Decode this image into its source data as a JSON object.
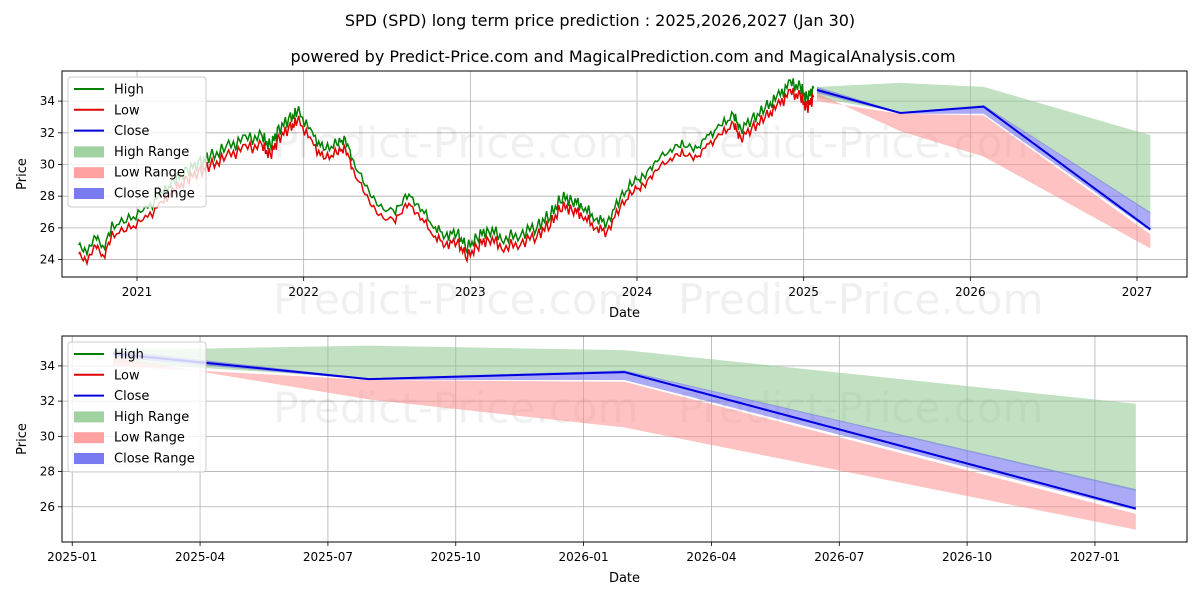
{
  "title": "SPD (SPD) long term price prediction : 2025,2026,2027 (Jan 30)",
  "subtitle": "powered by Predict-Price.com and MagicalPrediction.com and MagicalAnalysis.com",
  "watermark": "Predict-Price.com",
  "colors": {
    "high": "#008000",
    "low": "#e00000",
    "close": "#0000dd",
    "high_range": "#8fc98f",
    "low_range": "#ff9090",
    "close_range": "#6464ee",
    "grid": "#b0b0b0"
  },
  "chart_data": [
    {
      "type": "line",
      "name": "history-and-forecast",
      "xlabel": "Date",
      "ylabel": "Price",
      "x_ticks": [
        "2021",
        "2022",
        "2023",
        "2024",
        "2025",
        "2026",
        "2027"
      ],
      "y_ticks": [
        24,
        26,
        28,
        30,
        32,
        34
      ],
      "xlim": [
        2020.55,
        2027.3
      ],
      "ylim": [
        22.9,
        35.9
      ],
      "legend": [
        "High",
        "Low",
        "Close",
        "High Range",
        "Low Range",
        "Close Range"
      ],
      "legend_position": "top-left",
      "grid": true,
      "history": [
        [
          2020.65,
          24.6
        ],
        [
          2020.7,
          24.1
        ],
        [
          2020.75,
          25.2
        ],
        [
          2020.8,
          24.4
        ],
        [
          2020.85,
          25.8
        ],
        [
          2020.95,
          26.2
        ],
        [
          2021.05,
          26.8
        ],
        [
          2021.15,
          27.8
        ],
        [
          2021.22,
          28.6
        ],
        [
          2021.3,
          29.3
        ],
        [
          2021.38,
          29.8
        ],
        [
          2021.45,
          30.2
        ],
        [
          2021.55,
          30.8
        ],
        [
          2021.65,
          31.3
        ],
        [
          2021.75,
          31.4
        ],
        [
          2021.8,
          30.8
        ],
        [
          2021.85,
          31.9
        ],
        [
          2021.92,
          32.6
        ],
        [
          2021.97,
          33.0
        ],
        [
          2022.05,
          31.6
        ],
        [
          2022.12,
          30.6
        ],
        [
          2022.2,
          31.0
        ],
        [
          2022.25,
          31.3
        ],
        [
          2022.3,
          29.8
        ],
        [
          2022.38,
          28.2
        ],
        [
          2022.45,
          27.0
        ],
        [
          2022.55,
          26.7
        ],
        [
          2022.62,
          27.8
        ],
        [
          2022.7,
          27.0
        ],
        [
          2022.78,
          25.8
        ],
        [
          2022.85,
          25.2
        ],
        [
          2022.92,
          25.4
        ],
        [
          2022.98,
          24.4
        ],
        [
          2023.05,
          25.2
        ],
        [
          2023.12,
          25.6
        ],
        [
          2023.2,
          25.0
        ],
        [
          2023.3,
          25.3
        ],
        [
          2023.4,
          25.8
        ],
        [
          2023.48,
          26.5
        ],
        [
          2023.55,
          27.6
        ],
        [
          2023.62,
          27.4
        ],
        [
          2023.68,
          27.0
        ],
        [
          2023.75,
          26.3
        ],
        [
          2023.82,
          26.0
        ],
        [
          2023.9,
          27.6
        ],
        [
          2023.98,
          28.6
        ],
        [
          2024.05,
          29.0
        ],
        [
          2024.12,
          30.0
        ],
        [
          2024.2,
          30.6
        ],
        [
          2024.27,
          31.0
        ],
        [
          2024.35,
          30.6
        ],
        [
          2024.42,
          31.4
        ],
        [
          2024.5,
          32.1
        ],
        [
          2024.58,
          32.8
        ],
        [
          2024.62,
          31.9
        ],
        [
          2024.7,
          32.6
        ],
        [
          2024.78,
          33.3
        ],
        [
          2024.85,
          34.0
        ],
        [
          2024.92,
          34.8
        ],
        [
          2024.98,
          34.5
        ],
        [
          2025.02,
          33.8
        ],
        [
          2025.06,
          34.5
        ]
      ],
      "forecast": {
        "x": [
          2025.08,
          2025.58,
          2026.08,
          2027.08
        ],
        "close": [
          34.7,
          33.25,
          33.65,
          25.9
        ],
        "high_range": [
          [
            34.9,
            34.2
          ],
          [
            35.15,
            33.3
          ],
          [
            34.9,
            33.7
          ],
          [
            31.85,
            26.9
          ]
        ],
        "low_range": [
          [
            34.5,
            34.0
          ],
          [
            32.1,
            33.2
          ],
          [
            30.5,
            33.1
          ],
          [
            24.7,
            25.6
          ]
        ],
        "close_range": [
          [
            34.9,
            34.5
          ],
          [
            33.3,
            33.2
          ],
          [
            33.75,
            33.2
          ],
          [
            27.0,
            25.8
          ]
        ]
      }
    },
    {
      "type": "line",
      "name": "forecast-zoom",
      "xlabel": "Date",
      "ylabel": "Price",
      "x_ticks": [
        "2025-01",
        "2025-04",
        "2025-07",
        "2025-10",
        "2026-01",
        "2026-04",
        "2026-07",
        "2026-10",
        "2027-01"
      ],
      "y_ticks": [
        26,
        28,
        30,
        32,
        34
      ],
      "xlim": [
        2024.98,
        2027.18
      ],
      "ylim": [
        24.0,
        35.7
      ],
      "legend": [
        "High",
        "Low",
        "Close",
        "High Range",
        "Low Range",
        "Close Range"
      ],
      "legend_position": "top-left",
      "grid": true,
      "forecast": {
        "x": [
          2025.08,
          2025.58,
          2026.08,
          2027.08
        ],
        "close": [
          34.7,
          33.25,
          33.65,
          25.9
        ],
        "high_range": [
          [
            34.9,
            34.2
          ],
          [
            35.15,
            33.3
          ],
          [
            34.9,
            33.7
          ],
          [
            31.85,
            26.9
          ]
        ],
        "low_range": [
          [
            34.5,
            34.0
          ],
          [
            32.1,
            33.2
          ],
          [
            30.5,
            33.1
          ],
          [
            24.7,
            25.6
          ]
        ],
        "close_range": [
          [
            34.9,
            34.5
          ],
          [
            33.3,
            33.2
          ],
          [
            33.75,
            33.2
          ],
          [
            27.0,
            25.8
          ]
        ]
      }
    }
  ]
}
